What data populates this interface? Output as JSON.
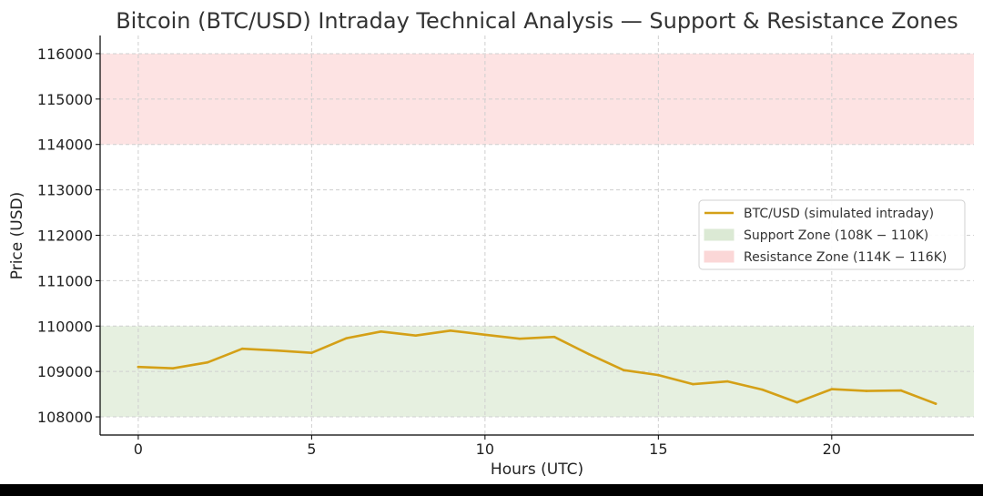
{
  "chart_data": {
    "type": "line",
    "title": "Bitcoin (BTC/USD) Intraday Technical Analysis — Support & Resistance Zones",
    "xlabel": "Hours (UTC)",
    "ylabel": "Price (USD)",
    "xlim": [
      -1.1,
      24.1
    ],
    "ylim": [
      107600,
      116400
    ],
    "xticks": [
      0,
      5,
      10,
      15,
      20
    ],
    "yticks": [
      108000,
      109000,
      110000,
      111000,
      112000,
      113000,
      114000,
      115000,
      116000
    ],
    "grid": true,
    "legend_position": "center-right",
    "series": [
      {
        "name": "BTC/USD (simulated intraday)",
        "color": "#d4a017",
        "x": [
          0,
          1,
          2,
          3,
          4,
          5,
          6,
          7,
          8,
          9,
          10,
          11,
          12,
          13,
          14,
          15,
          16,
          17,
          18,
          19,
          20,
          21,
          22,
          23
        ],
        "y": [
          109100,
          109070,
          109200,
          109500,
          109460,
          109410,
          109730,
          109880,
          109790,
          109900,
          109810,
          109720,
          109760,
          109380,
          109030,
          108920,
          108720,
          108780,
          108600,
          108320,
          108610,
          108570,
          108580,
          108290
        ]
      }
    ],
    "zones": [
      {
        "name": "Support Zone ($108K-$110K)",
        "legend_label": "Support Zone (108K − 110K)",
        "y0": 108000,
        "y1": 110000,
        "color": "#e6f0e0",
        "legend_color": "#dbe9d4"
      },
      {
        "name": "Resistance Zone ($114K-$116K)",
        "legend_label": "Resistance Zone (114K − 116K)",
        "y0": 114000,
        "y1": 116000,
        "color": "#fde3e3",
        "legend_color": "#fbd7d7"
      }
    ]
  }
}
